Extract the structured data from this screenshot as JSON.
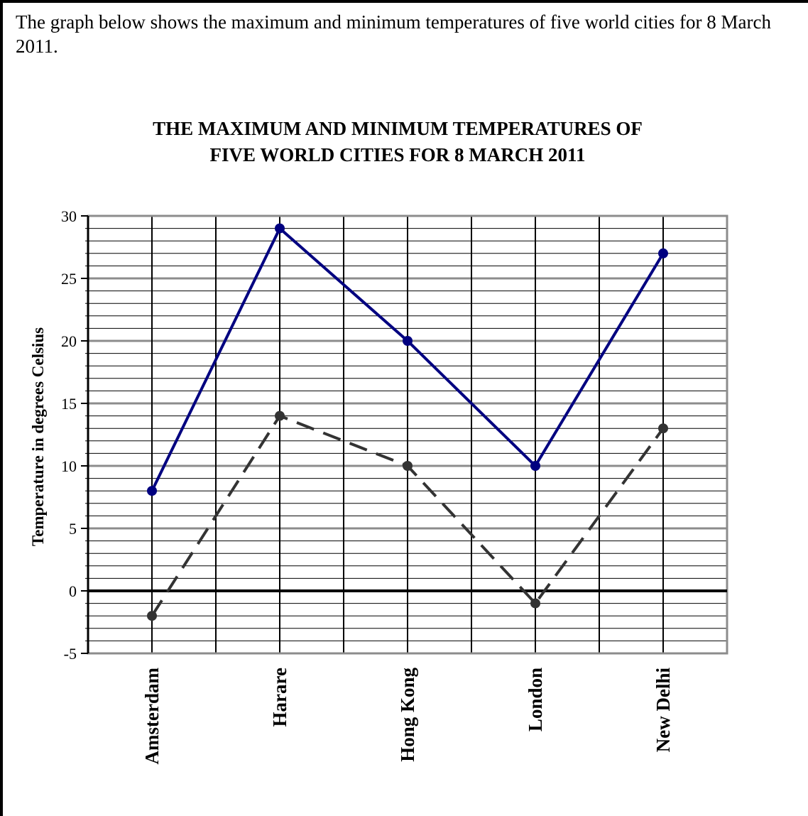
{
  "intro_text": "The graph below shows the maximum and minimum temperatures of five world cities for 8 March 2011.",
  "chart_data": {
    "type": "line",
    "title": "THE MAXIMUM AND MINIMUM TEMPERATURES OF",
    "subtitle": "FIVE WORLD CITIES FOR 8 MARCH 2011",
    "xlabel": "",
    "ylabel": "Temperature in degrees Celsius",
    "categories": [
      "Amsterdam",
      "Harare",
      "Hong Kong",
      "London",
      "New Delhi"
    ],
    "ylim": [
      -5,
      30
    ],
    "yticks": [
      -5,
      0,
      5,
      10,
      15,
      20,
      25,
      30
    ],
    "minor_step": 1,
    "grid": true,
    "series": [
      {
        "values": [
          8,
          29,
          20,
          10,
          27
        ],
        "color": "#000080",
        "style": "solid"
      },
      {
        "values": [
          -2,
          14,
          10,
          -1,
          13
        ],
        "color": "#333333",
        "style": "dashed"
      }
    ]
  }
}
